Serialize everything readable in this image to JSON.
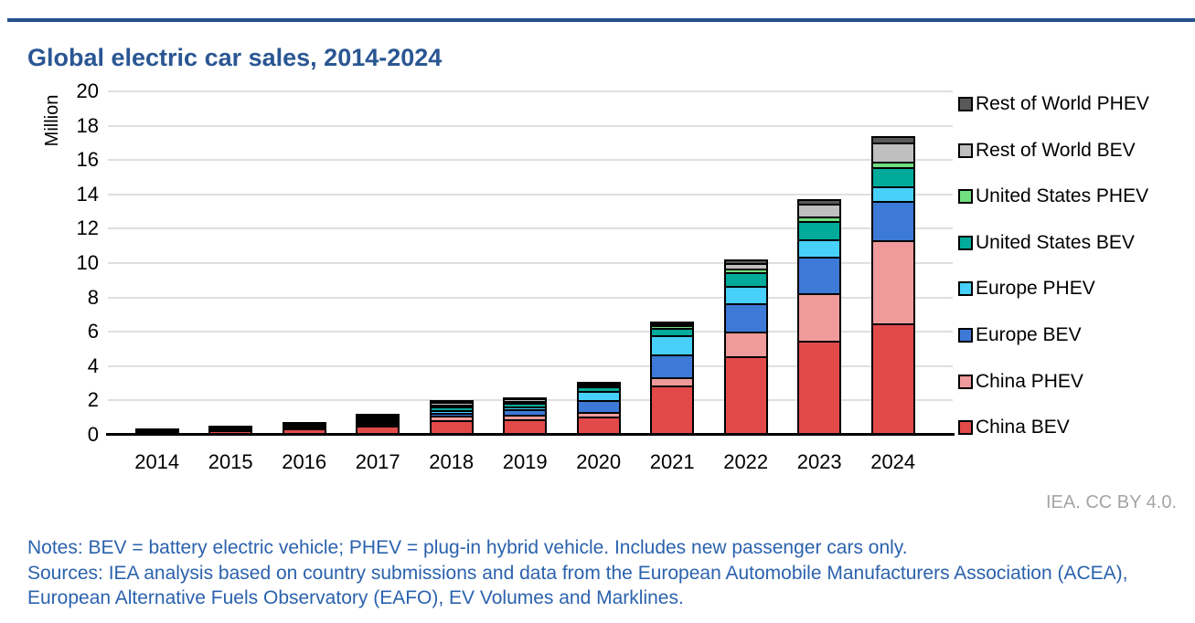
{
  "header": {
    "title": "Global electric car sales, 2014-2024"
  },
  "chart_data": {
    "type": "bar",
    "stacked": true,
    "title": "Global electric car sales, 2014-2024",
    "ylabel": "Million",
    "xlabel": "",
    "ylim": [
      0,
      20
    ],
    "ytick_step": 2,
    "grid": true,
    "legend_position": "right",
    "units": "million vehicles",
    "categories": [
      "2014",
      "2015",
      "2016",
      "2017",
      "2018",
      "2019",
      "2020",
      "2021",
      "2022",
      "2023",
      "2024"
    ],
    "series": [
      {
        "name": "China BEV",
        "color": "#e24a4a",
        "values": [
          0.05,
          0.15,
          0.26,
          0.47,
          0.79,
          0.85,
          1.0,
          2.8,
          4.5,
          5.4,
          6.4
        ]
      },
      {
        "name": "China PHEV",
        "color": "#ef9b9b",
        "values": [
          0.02,
          0.06,
          0.08,
          0.11,
          0.27,
          0.25,
          0.25,
          0.5,
          1.5,
          2.8,
          4.9
        ]
      },
      {
        "name": "Europe BEV",
        "color": "#3d79d6",
        "values": [
          0.06,
          0.09,
          0.09,
          0.15,
          0.2,
          0.35,
          0.75,
          1.35,
          1.65,
          2.2,
          2.3
        ]
      },
      {
        "name": "Europe PHEV",
        "color": "#47d0fa",
        "values": [
          0.04,
          0.08,
          0.1,
          0.14,
          0.18,
          0.2,
          0.6,
          1.15,
          1.05,
          1.0,
          0.9
        ]
      },
      {
        "name": "United States BEV",
        "color": "#00ab9b",
        "values": [
          0.06,
          0.07,
          0.09,
          0.1,
          0.24,
          0.25,
          0.23,
          0.45,
          0.8,
          1.1,
          1.1
        ]
      },
      {
        "name": "United States PHEV",
        "color": "#70df7f",
        "values": [
          0.06,
          0.04,
          0.07,
          0.09,
          0.12,
          0.08,
          0.07,
          0.17,
          0.2,
          0.25,
          0.35
        ]
      },
      {
        "name": "Rest of World BEV",
        "color": "#bfbfbf",
        "values": [
          0.04,
          0.04,
          0.04,
          0.1,
          0.15,
          0.17,
          0.12,
          0.12,
          0.35,
          0.75,
          1.1
        ]
      },
      {
        "name": "Rest of World PHEV",
        "color": "#595959",
        "values": [
          0.02,
          0.02,
          0.02,
          0.04,
          0.05,
          0.05,
          0.05,
          0.06,
          0.15,
          0.2,
          0.35
        ]
      }
    ],
    "legend_order_top_to_bottom": [
      "Rest of World PHEV",
      "Rest of World BEV",
      "United States PHEV",
      "United States BEV",
      "Europe PHEV",
      "Europe BEV",
      "China PHEV",
      "China BEV"
    ],
    "ytick_labels": [
      "0",
      "2",
      "4",
      "6",
      "8",
      "10",
      "12",
      "14",
      "16",
      "18",
      "20"
    ]
  },
  "footer": {
    "attribution": "IEA. CC BY 4.0.",
    "notes": "Notes: BEV = battery electric vehicle; PHEV = plug-in hybrid vehicle. Includes new passenger cars only.",
    "sources": "Sources: IEA analysis based on country submissions and data from the European Automobile Manufacturers Association (ACEA), European Alternative Fuels Observatory (EAFO), EV Volumes and Marklines."
  },
  "colors": {
    "title_text": "#2a5693",
    "rule": "#24508c",
    "notes_text": "#2b62ad",
    "attribution_text": "#a5a5a5",
    "gridline": "#dfdfdf",
    "axis": "#000000"
  }
}
